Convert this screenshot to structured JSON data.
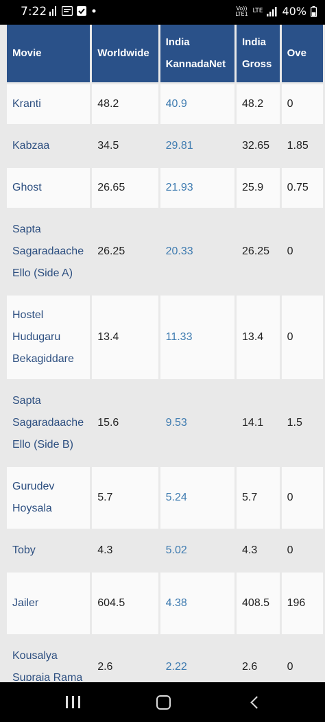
{
  "status_bar": {
    "time": "7:22",
    "network_label": "Vo)) LTE1",
    "lte_label": "LTE",
    "battery_percent": "40%",
    "icons": [
      "chart-icon",
      "news-icon",
      "checkbox-icon",
      "dot-icon",
      "volte-icon",
      "lte-icon",
      "signal-icon",
      "battery-icon"
    ]
  },
  "table": {
    "headers": [
      "Movie",
      "Worldwide",
      "India KannadaNet",
      "India Gross",
      "Overseas"
    ],
    "header_line_breaks": {
      "india_kannadanet": [
        "India",
        "KannadaNet"
      ],
      "india_gross": [
        "India",
        "Gross"
      ],
      "overseas_visible": "Ove"
    },
    "rows": [
      {
        "movie": "Kranti",
        "worldwide": "48.2",
        "india_net": "40.9",
        "india_gross": "48.2",
        "overseas": "0"
      },
      {
        "movie": "Kabzaa",
        "worldwide": "34.5",
        "india_net": "29.81",
        "india_gross": "32.65",
        "overseas": "1.85"
      },
      {
        "movie": "Ghost",
        "worldwide": "26.65",
        "india_net": "21.93",
        "india_gross": "25.9",
        "overseas": "0.75"
      },
      {
        "movie": "Sapta Sagaradaache Ello (Side A)",
        "worldwide": "26.25",
        "india_net": "20.33",
        "india_gross": "26.25",
        "overseas": "0"
      },
      {
        "movie": "Hostel Hudugaru Bekagiddare",
        "worldwide": "13.4",
        "india_net": "11.33",
        "india_gross": "13.4",
        "overseas": "0"
      },
      {
        "movie": "Sapta Sagaradaache Ello (Side B)",
        "worldwide": "15.6",
        "india_net": "9.53",
        "india_gross": "14.1",
        "overseas": "1.5"
      },
      {
        "movie": "Gurudev Hoysala",
        "worldwide": "5.7",
        "india_net": "5.24",
        "india_gross": "5.7",
        "overseas": "0"
      },
      {
        "movie": "Toby",
        "worldwide": "4.3",
        "india_net": "5.02",
        "india_gross": "4.3",
        "overseas": "0"
      },
      {
        "movie": "Jailer",
        "worldwide": "604.5",
        "india_net": "4.38",
        "india_gross": "408.5",
        "overseas": "196"
      },
      {
        "movie": "Kousalya Supraja Rama",
        "worldwide": "2.6",
        "india_net": "2.22",
        "india_gross": "2.6",
        "overseas": "0"
      }
    ]
  },
  "colors": {
    "header_bg": "#2a5189",
    "link": "#3e7bb0",
    "movie_text": "#2d4f80"
  },
  "nav_bar": {
    "icons": [
      "recents-icon",
      "home-icon",
      "back-icon"
    ]
  }
}
